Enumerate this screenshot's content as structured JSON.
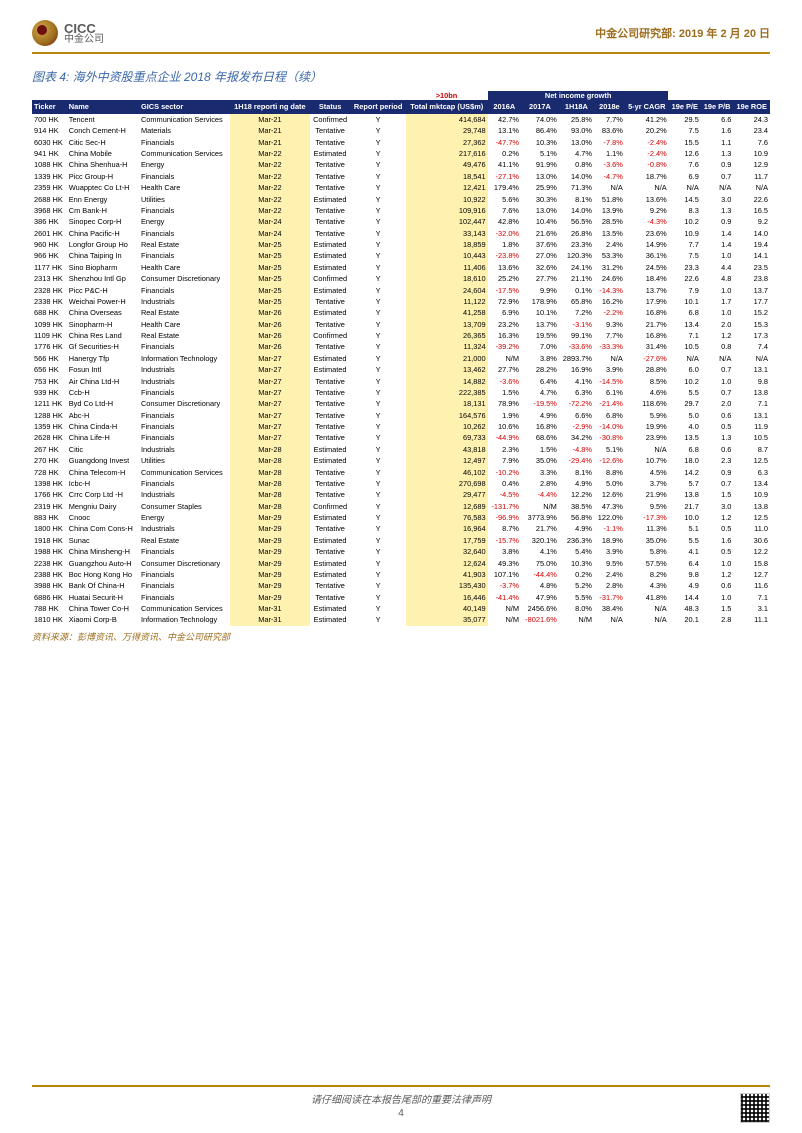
{
  "header": {
    "company_en": "CICC",
    "company_cn": "中金公司",
    "dept": "中金公司研究部:",
    "date": "2019 年 2 月 20 日"
  },
  "chart_title": "图表 4: 海外中资股重点企业 2018 年报发布日程（续）",
  "super": {
    "gt10bn": ">10bn",
    "netgrowth": "Net income growth"
  },
  "columns": [
    "Ticker",
    "Name",
    "GICS sector",
    "1H18 reporti ng date",
    "Status",
    "Report period",
    "Total mktcap (US$m)",
    "2016A",
    "2017A",
    "1H18A",
    "2018e",
    "5-yr CAGR",
    "19e P/E",
    "19e P/B",
    "19e ROE"
  ],
  "rows": [
    [
      "700 HK",
      "Tencent",
      "Communication Services",
      "Mar-21",
      "Confirmed",
      "Y",
      "414,684",
      "42.7%",
      "74.0%",
      "25.8%",
      "7.7%",
      "41.2%",
      "29.5",
      "6.6",
      "24.3"
    ],
    [
      "914 HK",
      "Conch Cement-H",
      "Materials",
      "Mar-21",
      "Tentative",
      "Y",
      "29,748",
      "13.1%",
      "86.4%",
      "93.0%",
      "83.6%",
      "20.2%",
      "7.5",
      "1.6",
      "23.4"
    ],
    [
      "6030 HK",
      "Citic Sec-H",
      "Financials",
      "Mar-21",
      "Tentative",
      "Y",
      "27,362",
      "-47.7%",
      "10.3%",
      "13.0%",
      "-7.8%",
      "-2.4%",
      "15.5",
      "1.1",
      "7.6"
    ],
    [
      "941 HK",
      "China Mobile",
      "Communication Services",
      "Mar-22",
      "Estimated",
      "Y",
      "217,616",
      "0.2%",
      "5.1%",
      "4.7%",
      "1.1%",
      "-2.4%",
      "12.6",
      "1.3",
      "10.9"
    ],
    [
      "1088 HK",
      "China Shenhua-H",
      "Energy",
      "Mar-22",
      "Tentative",
      "Y",
      "49,476",
      "41.1%",
      "91.9%",
      "0.8%",
      "-3.6%",
      "-0.8%",
      "7.6",
      "0.9",
      "12.9"
    ],
    [
      "1339 HK",
      "Picc Group-H",
      "Financials",
      "Mar-22",
      "Tentative",
      "Y",
      "18,541",
      "-27.1%",
      "13.0%",
      "14.0%",
      "-4.7%",
      "18.7%",
      "6.9",
      "0.7",
      "11.7"
    ],
    [
      "2359 HK",
      "Wuapptec Co Lt-H",
      "Health Care",
      "Mar-22",
      "Tentative",
      "Y",
      "12,421",
      "179.4%",
      "25.9%",
      "71.3%",
      "N/A",
      "N/A",
      "N/A",
      "N/A",
      "N/A"
    ],
    [
      "2688 HK",
      "Enn Energy",
      "Utilities",
      "Mar-22",
      "Estimated",
      "Y",
      "10,922",
      "5.6%",
      "30.3%",
      "8.1%",
      "51.8%",
      "13.6%",
      "14.5",
      "3.0",
      "22.6"
    ],
    [
      "3968 HK",
      "Cm Bank-H",
      "Financials",
      "Mar-22",
      "Tentative",
      "Y",
      "109,916",
      "7.6%",
      "13.0%",
      "14.0%",
      "13.9%",
      "9.2%",
      "8.3",
      "1.3",
      "16.5"
    ],
    [
      "386 HK",
      "Sinopec Corp-H",
      "Energy",
      "Mar-24",
      "Tentative",
      "Y",
      "102,447",
      "42.8%",
      "10.4%",
      "56.5%",
      "28.5%",
      "-4.3%",
      "10.2",
      "0.9",
      "9.2"
    ],
    [
      "2601 HK",
      "China Pacific-H",
      "Financials",
      "Mar-24",
      "Tentative",
      "Y",
      "33,143",
      "-32.0%",
      "21.6%",
      "26.8%",
      "13.5%",
      "23.6%",
      "10.9",
      "1.4",
      "14.0"
    ],
    [
      "960 HK",
      "Longfor Group Ho",
      "Real Estate",
      "Mar-25",
      "Estimated",
      "Y",
      "18,859",
      "1.8%",
      "37.6%",
      "23.3%",
      "2.4%",
      "14.9%",
      "7.7",
      "1.4",
      "19.4"
    ],
    [
      "966 HK",
      "China Taiping In",
      "Financials",
      "Mar-25",
      "Estimated",
      "Y",
      "10,443",
      "-23.8%",
      "27.0%",
      "120.3%",
      "53.3%",
      "36.1%",
      "7.5",
      "1.0",
      "14.1"
    ],
    [
      "1177 HK",
      "Sino Biopharm",
      "Health Care",
      "Mar-25",
      "Estimated",
      "Y",
      "11,406",
      "13.6%",
      "32.6%",
      "24.1%",
      "31.2%",
      "24.5%",
      "23.3",
      "4.4",
      "23.5"
    ],
    [
      "2313 HK",
      "Shenzhou Intl Gp",
      "Consumer Discretionary",
      "Mar-25",
      "Confirmed",
      "Y",
      "18,610",
      "25.2%",
      "27.7%",
      "21.1%",
      "24.6%",
      "18.4%",
      "22.6",
      "4.8",
      "23.8"
    ],
    [
      "2328 HK",
      "Picc P&C-H",
      "Financials",
      "Mar-25",
      "Estimated",
      "Y",
      "24,604",
      "-17.5%",
      "9.9%",
      "0.1%",
      "-14.3%",
      "13.7%",
      "7.9",
      "1.0",
      "13.7"
    ],
    [
      "2338 HK",
      "Weichai Power-H",
      "Industrials",
      "Mar-25",
      "Tentative",
      "Y",
      "11,122",
      "72.9%",
      "178.9%",
      "65.8%",
      "16.2%",
      "17.9%",
      "10.1",
      "1.7",
      "17.7"
    ],
    [
      "688 HK",
      "China Overseas",
      "Real Estate",
      "Mar-26",
      "Estimated",
      "Y",
      "41,258",
      "6.9%",
      "10.1%",
      "7.2%",
      "-2.2%",
      "16.8%",
      "6.8",
      "1.0",
      "15.2"
    ],
    [
      "1099 HK",
      "Sinopharm-H",
      "Health Care",
      "Mar-26",
      "Tentative",
      "Y",
      "13,709",
      "23.2%",
      "13.7%",
      "-3.1%",
      "9.3%",
      "21.7%",
      "13.4",
      "2.0",
      "15.3"
    ],
    [
      "1109 HK",
      "China Res Land",
      "Real Estate",
      "Mar-26",
      "Confirmed",
      "Y",
      "26,365",
      "16.3%",
      "19.5%",
      "99.1%",
      "7.7%",
      "16.8%",
      "7.1",
      "1.2",
      "17.3"
    ],
    [
      "1776 HK",
      "Gf Securities-H",
      "Financials",
      "Mar-26",
      "Tentative",
      "Y",
      "11,324",
      "-39.2%",
      "7.0%",
      "-33.6%",
      "-33.3%",
      "31.4%",
      "10.5",
      "0.8",
      "7.4"
    ],
    [
      "566 HK",
      "Hanergy Tfp",
      "Information Technology",
      "Mar-27",
      "Estimated",
      "Y",
      "21,000",
      "N/M",
      "3.8%",
      "2893.7%",
      "N/A",
      "-27.6%",
      "N/A",
      "N/A",
      "N/A"
    ],
    [
      "656 HK",
      "Fosun Intl",
      "Industrials",
      "Mar-27",
      "Estimated",
      "Y",
      "13,462",
      "27.7%",
      "28.2%",
      "16.9%",
      "3.9%",
      "28.8%",
      "6.0",
      "0.7",
      "13.1"
    ],
    [
      "753 HK",
      "Air China Ltd-H",
      "Industrials",
      "Mar-27",
      "Tentative",
      "Y",
      "14,882",
      "-3.6%",
      "6.4%",
      "4.1%",
      "-14.5%",
      "8.5%",
      "10.2",
      "1.0",
      "9.8"
    ],
    [
      "939 HK",
      "Ccb-H",
      "Financials",
      "Mar-27",
      "Tentative",
      "Y",
      "222,385",
      "1.5%",
      "4.7%",
      "6.3%",
      "6.1%",
      "4.6%",
      "5.5",
      "0.7",
      "13.8"
    ],
    [
      "1211 HK",
      "Byd Co Ltd-H",
      "Consumer Discretionary",
      "Mar-27",
      "Tentative",
      "Y",
      "18,131",
      "78.9%",
      "-19.5%",
      "-72.2%",
      "-21.4%",
      "118.6%",
      "29.7",
      "2.0",
      "7.1"
    ],
    [
      "1288 HK",
      "Abc-H",
      "Financials",
      "Mar-27",
      "Tentative",
      "Y",
      "164,576",
      "1.9%",
      "4.9%",
      "6.6%",
      "6.8%",
      "5.9%",
      "5.0",
      "0.6",
      "13.1"
    ],
    [
      "1359 HK",
      "China Cinda-H",
      "Financials",
      "Mar-27",
      "Tentative",
      "Y",
      "10,262",
      "10.6%",
      "16.8%",
      "-2.9%",
      "-14.0%",
      "19.9%",
      "4.0",
      "0.5",
      "11.9"
    ],
    [
      "2628 HK",
      "China Life-H",
      "Financials",
      "Mar-27",
      "Tentative",
      "Y",
      "69,733",
      "-44.9%",
      "68.6%",
      "34.2%",
      "-30.8%",
      "23.9%",
      "13.5",
      "1.3",
      "10.5"
    ],
    [
      "267 HK",
      "Citic",
      "Industrials",
      "Mar-28",
      "Estimated",
      "Y",
      "43,818",
      "2.3%",
      "1.5%",
      "-4.8%",
      "5.1%",
      "N/A",
      "6.8",
      "0.6",
      "8.7"
    ],
    [
      "270 HK",
      "Guangdong Invest",
      "Utilities",
      "Mar-28",
      "Estimated",
      "Y",
      "12,497",
      "7.9%",
      "35.0%",
      "-29.4%",
      "-12.6%",
      "10.7%",
      "18.0",
      "2.3",
      "12.5"
    ],
    [
      "728 HK",
      "China Telecom-H",
      "Communication Services",
      "Mar-28",
      "Tentative",
      "Y",
      "46,102",
      "-10.2%",
      "3.3%",
      "8.1%",
      "8.8%",
      "4.5%",
      "14.2",
      "0.9",
      "6.3"
    ],
    [
      "1398 HK",
      "Icbc-H",
      "Financials",
      "Mar-28",
      "Tentative",
      "Y",
      "270,698",
      "0.4%",
      "2.8%",
      "4.9%",
      "5.0%",
      "3.7%",
      "5.7",
      "0.7",
      "13.4"
    ],
    [
      "1766 HK",
      "Crrc Corp Ltd -H",
      "Industrials",
      "Mar-28",
      "Tentative",
      "Y",
      "29,477",
      "-4.5%",
      "-4.4%",
      "12.2%",
      "12.6%",
      "21.9%",
      "13.8",
      "1.5",
      "10.9"
    ],
    [
      "2319 HK",
      "Mengniu Dairy",
      "Consumer Staples",
      "Mar-28",
      "Confirmed",
      "Y",
      "12,689",
      "-131.7%",
      "N/M",
      "38.5%",
      "47.3%",
      "9.5%",
      "21.7",
      "3.0",
      "13.8"
    ],
    [
      "883 HK",
      "Cnooc",
      "Energy",
      "Mar-29",
      "Estimated",
      "Y",
      "76,583",
      "-96.9%",
      "3773.9%",
      "56.8%",
      "122.0%",
      "-17.3%",
      "10.0",
      "1.2",
      "12.5"
    ],
    [
      "1800 HK",
      "China Com Cons-H",
      "Industrials",
      "Mar-29",
      "Tentative",
      "Y",
      "16,964",
      "8.7%",
      "21.7%",
      "4.9%",
      "-1.1%",
      "11.3%",
      "5.1",
      "0.5",
      "11.0"
    ],
    [
      "1918 HK",
      "Sunac",
      "Real Estate",
      "Mar-29",
      "Estimated",
      "Y",
      "17,759",
      "-15.7%",
      "320.1%",
      "236.3%",
      "18.9%",
      "35.0%",
      "5.5",
      "1.6",
      "30.6"
    ],
    [
      "1988 HK",
      "China Minsheng-H",
      "Financials",
      "Mar-29",
      "Tentative",
      "Y",
      "32,640",
      "3.8%",
      "4.1%",
      "5.4%",
      "3.9%",
      "5.8%",
      "4.1",
      "0.5",
      "12.2"
    ],
    [
      "2238 HK",
      "Guangzhou Auto-H",
      "Consumer Discretionary",
      "Mar-29",
      "Estimated",
      "Y",
      "12,624",
      "49.3%",
      "75.0%",
      "10.3%",
      "9.5%",
      "57.5%",
      "6.4",
      "1.0",
      "15.8"
    ],
    [
      "2388 HK",
      "Boc Hong Kong Ho",
      "Financials",
      "Mar-29",
      "Estimated",
      "Y",
      "41,903",
      "107.1%",
      "-44.4%",
      "0.2%",
      "2.4%",
      "8.2%",
      "9.8",
      "1.2",
      "12.7"
    ],
    [
      "3988 HK",
      "Bank Of China-H",
      "Financials",
      "Mar-29",
      "Tentative",
      "Y",
      "135,430",
      "-3.7%",
      "4.8%",
      "5.2%",
      "2.8%",
      "4.3%",
      "4.9",
      "0.6",
      "11.6"
    ],
    [
      "6886 HK",
      "Huatai Securit-H",
      "Financials",
      "Mar-29",
      "Tentative",
      "Y",
      "16,446",
      "-41.4%",
      "47.9%",
      "5.5%",
      "-31.7%",
      "41.8%",
      "14.4",
      "1.0",
      "7.1"
    ],
    [
      "788 HK",
      "China Tower Co-H",
      "Communication Services",
      "Mar-31",
      "Estimated",
      "Y",
      "40,149",
      "N/M",
      "2456.6%",
      "8.0%",
      "38.4%",
      "N/A",
      "48.3",
      "1.5",
      "3.1"
    ],
    [
      "1810 HK",
      "Xiaomi Corp-B",
      "Information Technology",
      "Mar-31",
      "Estimated",
      "Y",
      "35,077",
      "N/M",
      "-8021.6%",
      "N/M",
      "N/A",
      "N/A",
      "20.1",
      "2.8",
      "11.1"
    ]
  ],
  "source": "资料来源：彭博资讯、万得资讯、中金公司研究部",
  "footer": {
    "text": "请仔细阅读在本报告尾部的重要法律声明",
    "page": "4"
  }
}
